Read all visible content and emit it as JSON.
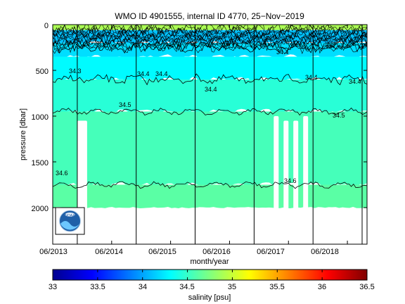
{
  "chart_data": {
    "type": "heatmap",
    "title": "WMO ID 4901555, internal ID 4770, 25−Nov−2019",
    "xlabel": "month/year",
    "ylabel": "pressure [dbar]",
    "x_ticks": [
      "06/2013",
      "06/2014",
      "06/2015",
      "06/2016",
      "06/2017",
      "06/2018"
    ],
    "y_ticks": [
      "0",
      "500",
      "1000",
      "1500",
      "2000"
    ],
    "y_tick_values": [
      0,
      500,
      1000,
      1500,
      2000
    ],
    "xlim": [
      "2013-06",
      "2018-10"
    ],
    "ylim": [
      2400,
      0
    ],
    "colorbar": {
      "label": "salinity [psu]",
      "ticks": [
        "33",
        "33.5",
        "34",
        "34.5",
        "35",
        "35.5",
        "36",
        "36.5"
      ],
      "tick_values": [
        33,
        33.5,
        34,
        34.5,
        35,
        35.5,
        36,
        36.5
      ],
      "range": [
        33,
        36.5
      ],
      "colormap": "jet"
    },
    "year_markers": [
      "2013-11",
      "2014-11",
      "2015-11",
      "2016-11",
      "2017-11",
      "2018-09"
    ],
    "layers": [
      {
        "from_pressure": 0,
        "to_pressure": 60,
        "salinity": 34.9
      },
      {
        "from_pressure": 60,
        "to_pressure": 200,
        "salinity": 34.1
      },
      {
        "from_pressure": 200,
        "to_pressure": 350,
        "salinity": 34.2
      },
      {
        "from_pressure": 350,
        "to_pressure": 600,
        "salinity": 34.3
      },
      {
        "from_pressure": 600,
        "to_pressure": 950,
        "salinity": 34.45
      },
      {
        "from_pressure": 950,
        "to_pressure": 1750,
        "salinity": 34.55
      },
      {
        "from_pressure": 1750,
        "to_pressure": 2000,
        "salinity": 34.62
      }
    ],
    "contours": [
      {
        "label": "34.3",
        "pressure": 250
      },
      {
        "label": "34.4",
        "pressure": 600
      },
      {
        "label": "34.5",
        "pressure": 950
      },
      {
        "label": "34.6",
        "pressure": 1750
      }
    ],
    "contour_labels": [
      "34.3",
      "34.4",
      "34.4",
      "34.4",
      "34.4",
      "34.4",
      "34.4",
      "34.5",
      "34.5",
      "34.6",
      "34.6"
    ],
    "data_gaps": [
      {
        "from": "2013-11",
        "to": "2014-01",
        "from_pressure": 1050,
        "to_pressure": 2050
      },
      {
        "from": "2017-03",
        "to": "2017-04",
        "from_pressure": 1000,
        "to_pressure": 2050
      },
      {
        "from": "2017-05",
        "to": "2017-06",
        "from_pressure": 1050,
        "to_pressure": 2050
      },
      {
        "from": "2017-07",
        "to": "2017-08",
        "from_pressure": 1050,
        "to_pressure": 2050
      },
      {
        "from": "2017-09",
        "to": "2017-10",
        "from_pressure": 1000,
        "to_pressure": 2050
      }
    ],
    "logo": "NOAA"
  }
}
